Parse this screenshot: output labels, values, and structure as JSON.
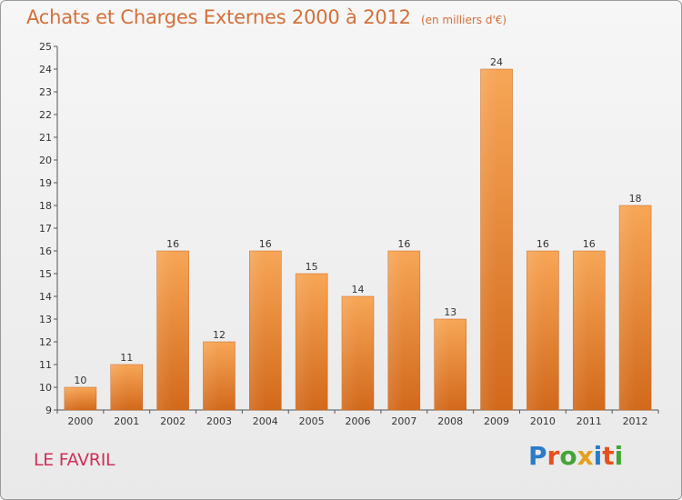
{
  "header": {
    "title": "Achats et Charges Externes 2000 à 2012",
    "unit": "(en milliers d'€)"
  },
  "location": "LE FAVRIL",
  "logo": {
    "text": "Proxiti",
    "letter_colors": [
      "#2b7bc6",
      "#e8501d",
      "#44a537",
      "#e4a020",
      "#2b7bc6",
      "#e8501d",
      "#44a537"
    ]
  },
  "colors": {
    "title": "#d4703a",
    "location": "#d0305a",
    "bar_top": "#f7a657",
    "bar_bottom": "#d2691b"
  },
  "chart_data": {
    "type": "bar",
    "categories": [
      "2000",
      "2001",
      "2002",
      "2003",
      "2004",
      "2005",
      "2006",
      "2007",
      "2008",
      "2009",
      "2010",
      "2011",
      "2012"
    ],
    "values": [
      10,
      11,
      16,
      12,
      16,
      15,
      14,
      16,
      13,
      24,
      16,
      16,
      18
    ],
    "data_labels": [
      "10",
      "11",
      "16",
      "12",
      "16",
      "15",
      "14",
      "16",
      "13",
      "24",
      "16",
      "16",
      "18"
    ],
    "yticks": [
      "9",
      "10",
      "11",
      "12",
      "13",
      "14",
      "15",
      "16",
      "17",
      "18",
      "19",
      "20",
      "21",
      "22",
      "23",
      "24",
      "25"
    ],
    "ylim": [
      9,
      25
    ],
    "grid": false,
    "xlabel": "",
    "ylabel": ""
  }
}
